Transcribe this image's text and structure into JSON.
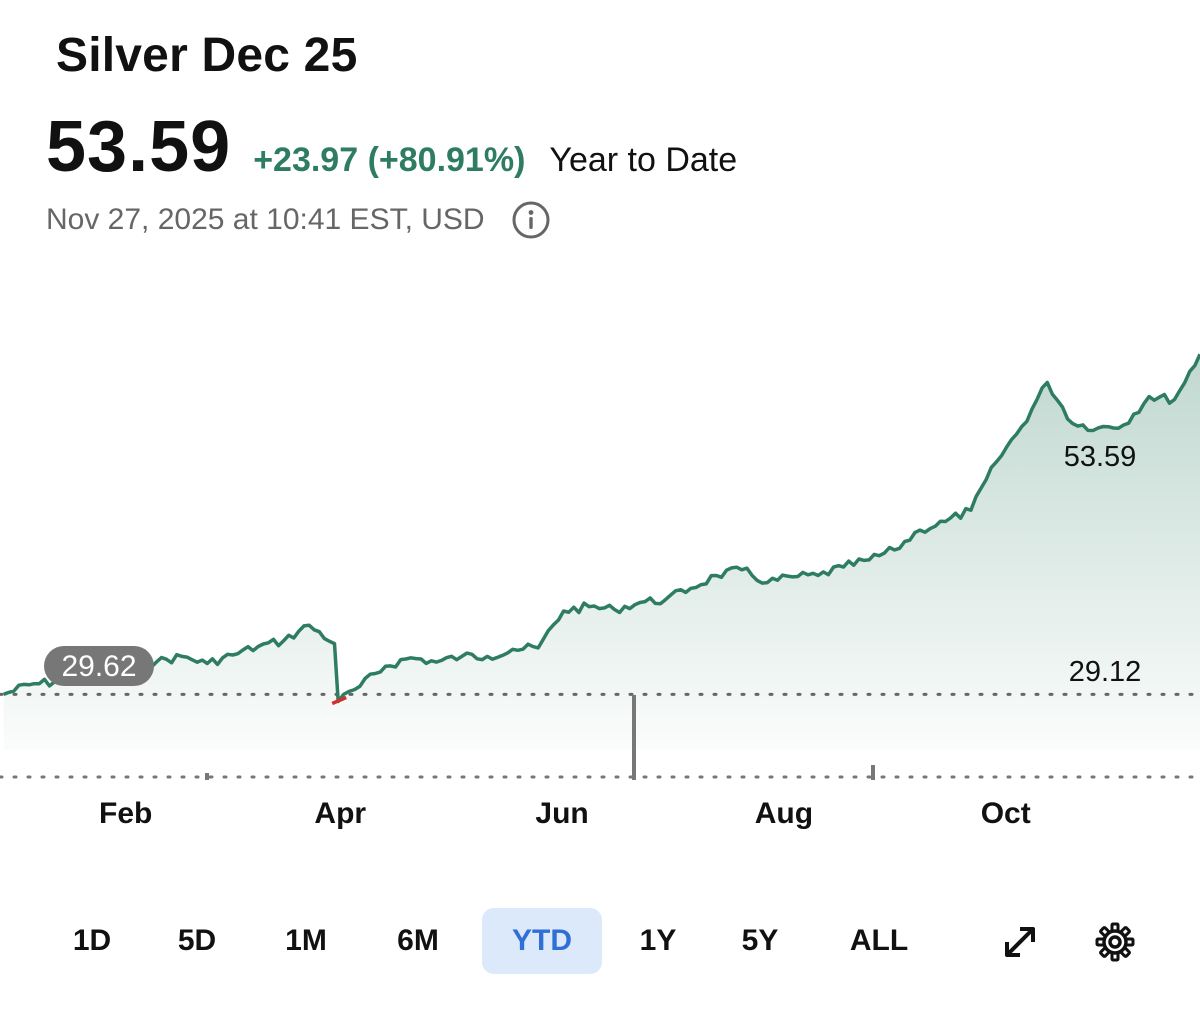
{
  "header": {
    "title": "Silver Dec 25",
    "price": "53.59",
    "change": "+23.97 (+80.91%)",
    "period_label": "Year to Date",
    "timestamp": "Nov 27, 2025 at 10:41 EST, USD",
    "info_icon": "info-icon"
  },
  "colors": {
    "positive": "#2e7d62",
    "negative": "#d32f2f",
    "active_range_bg": "#dbe9fb",
    "active_range_text": "#2f6fd6"
  },
  "ranges": {
    "options": [
      "1D",
      "5D",
      "1M",
      "6M",
      "YTD",
      "1Y",
      "5Y",
      "ALL"
    ],
    "selected": "YTD",
    "expand_icon": "expand-icon",
    "settings_icon": "gear-icon"
  },
  "chart_data": {
    "type": "area",
    "series": [
      {
        "x": [
          "2025-01-02",
          "2025-01-09",
          "2025-01-16",
          "2025-01-23",
          "2025-01-30",
          "2025-02-06",
          "2025-02-13",
          "2025-02-20",
          "2025-02-27",
          "2025-03-06",
          "2025-03-13",
          "2025-03-20",
          "2025-03-27",
          "2025-04-03",
          "2025-04-04",
          "2025-04-10",
          "2025-04-17",
          "2025-04-24",
          "2025-05-01",
          "2025-05-08",
          "2025-05-15",
          "2025-05-22",
          "2025-05-29",
          "2025-06-05",
          "2025-06-12",
          "2025-06-19",
          "2025-06-26",
          "2025-07-03",
          "2025-07-10",
          "2025-07-17",
          "2025-07-24",
          "2025-07-31",
          "2025-08-07",
          "2025-08-14",
          "2025-08-21",
          "2025-08-28",
          "2025-09-04",
          "2025-09-11",
          "2025-09-18",
          "2025-09-25",
          "2025-10-02",
          "2025-10-09",
          "2025-10-16",
          "2025-10-23",
          "2025-10-30",
          "2025-11-06",
          "2025-11-13",
          "2025-11-20",
          "2025-11-27"
        ],
        "y": [
          29.62,
          30.3,
          30.5,
          30.8,
          31.2,
          31.6,
          31.9,
          32.3,
          31.8,
          32.4,
          33.0,
          33.4,
          34.5,
          33.2,
          29.12,
          30.2,
          31.6,
          32.2,
          31.9,
          32.3,
          32.3,
          32.8,
          32.9,
          35.5,
          35.8,
          35.6,
          36.1,
          36.3,
          37.1,
          38.0,
          38.4,
          37.5,
          37.9,
          38.0,
          38.6,
          39.1,
          39.8,
          41.2,
          41.8,
          42.6,
          46.0,
          48.5,
          51.6,
          48.7,
          48.4,
          48.6,
          50.6,
          50.4,
          53.59
        ],
        "color": "#2e7d62"
      }
    ],
    "x_tick_labels": [
      "Feb",
      "Apr",
      "Jun",
      "Aug",
      "Oct"
    ],
    "x_tick_dates": [
      "2025-02-01",
      "2025-04-01",
      "2025-06-01",
      "2025-08-01",
      "2025-10-01"
    ],
    "x_range": [
      "2025-01-01",
      "2025-11-27"
    ],
    "y_range": [
      25.0,
      56.0
    ],
    "reference_line": 29.62,
    "reference_label": "29.62",
    "high_label": "53.59",
    "low_label": "29.12",
    "grid": false
  }
}
